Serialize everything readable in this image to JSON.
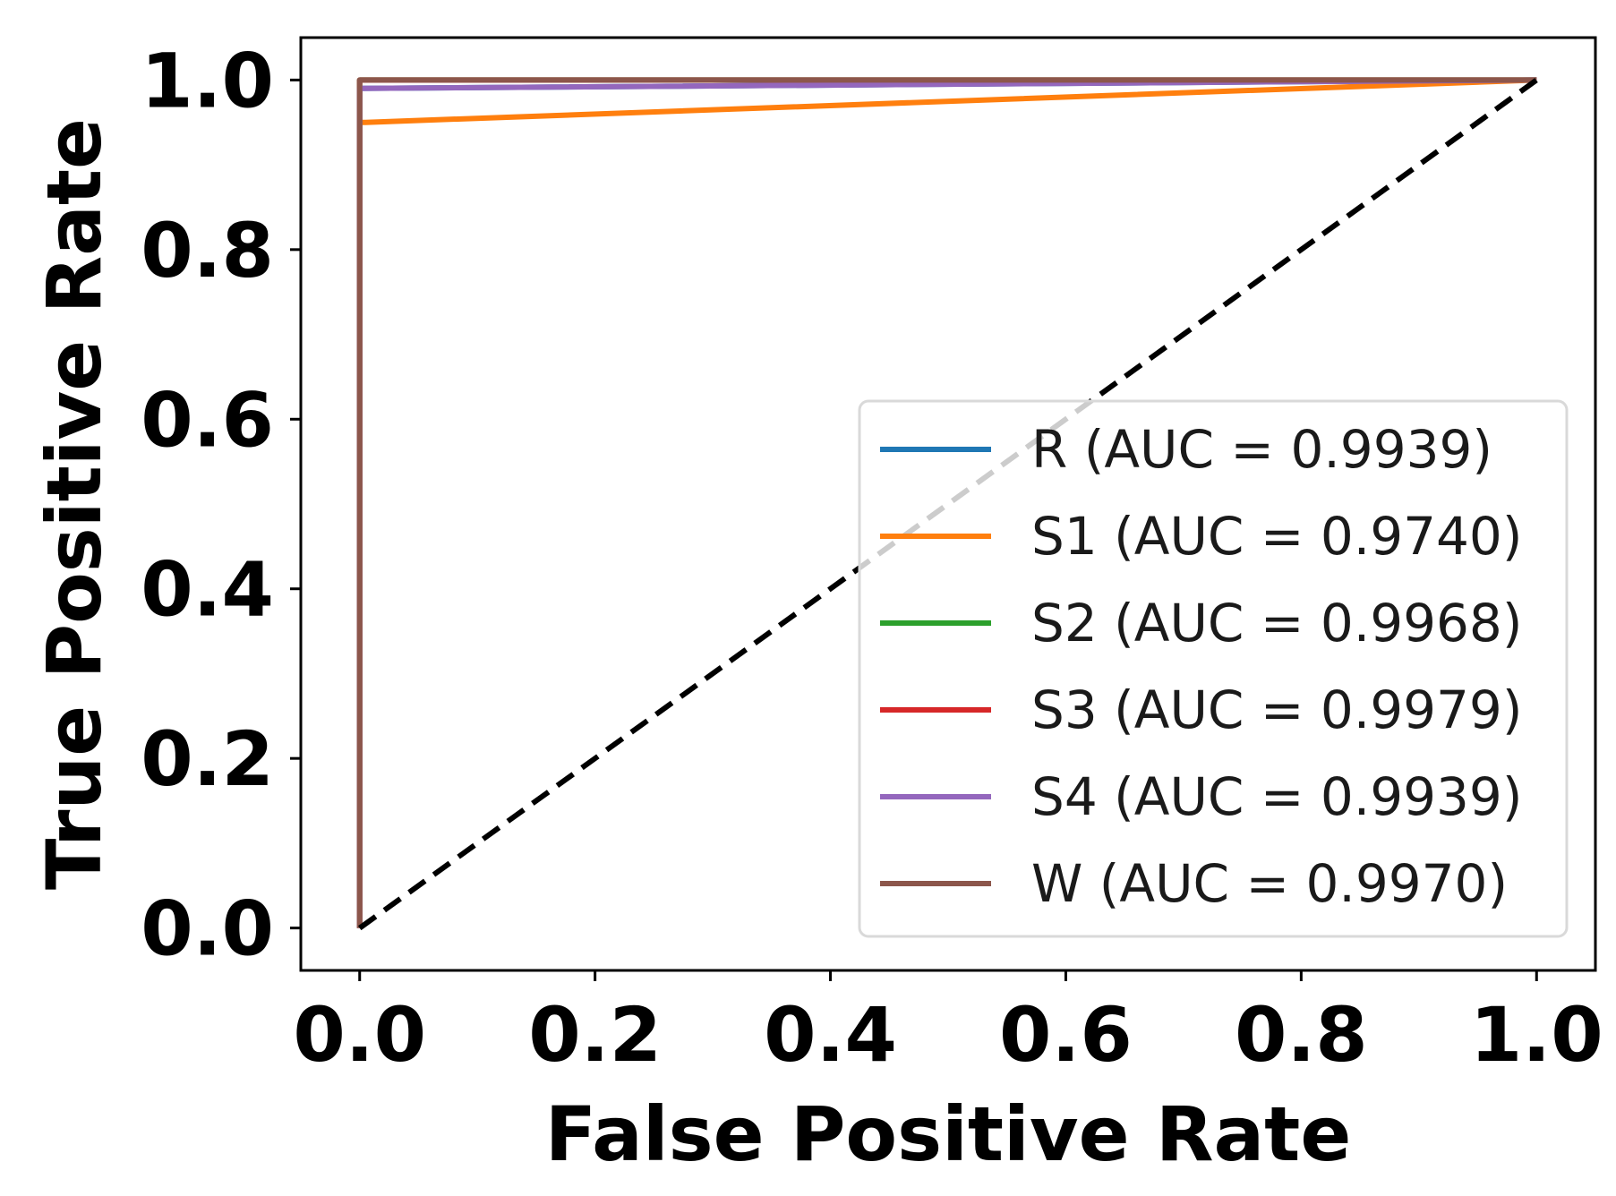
{
  "chart_data": {
    "type": "line",
    "title": "",
    "xlabel": "False Positive Rate",
    "ylabel": "True Positive Rate",
    "xlim": [
      -0.05,
      1.05
    ],
    "ylim": [
      -0.05,
      1.05
    ],
    "xticks": [
      0.0,
      0.2,
      0.4,
      0.6,
      0.8,
      1.0
    ],
    "yticks": [
      0.0,
      0.2,
      0.4,
      0.6,
      0.8,
      1.0
    ],
    "xtick_labels": [
      "0.0",
      "0.2",
      "0.4",
      "0.6",
      "0.8",
      "1.0"
    ],
    "ytick_labels": [
      "0.0",
      "0.2",
      "0.4",
      "0.6",
      "0.8",
      "1.0"
    ],
    "grid": false,
    "legend_position": "lower-right",
    "reference_line": {
      "x": [
        0,
        1
      ],
      "y": [
        0,
        1
      ],
      "style": "dashed",
      "color": "#000000"
    },
    "series": [
      {
        "name": "R (AUC = 0.9939)",
        "color": "#1f77b4",
        "x": [
          0,
          0.0,
          1.0
        ],
        "y": [
          0,
          0.99,
          1.0
        ]
      },
      {
        "name": "S1 (AUC = 0.9740)",
        "color": "#ff7f0e",
        "x": [
          0,
          0.0,
          0.005,
          1.0
        ],
        "y": [
          0,
          0.95,
          0.95,
          1.0
        ]
      },
      {
        "name": "S2 (AUC = 0.9968)",
        "color": "#2ca02c",
        "x": [
          0,
          0.0,
          1.0
        ],
        "y": [
          0,
          1.0,
          1.0
        ]
      },
      {
        "name": "S3 (AUC = 0.9979)",
        "color": "#d62728",
        "x": [
          0,
          0.0,
          1.0
        ],
        "y": [
          0,
          1.0,
          1.0
        ]
      },
      {
        "name": "S4 (AUC = 0.9939)",
        "color": "#9467bd",
        "x": [
          0,
          0.0,
          1.0
        ],
        "y": [
          0,
          0.99,
          1.0
        ]
      },
      {
        "name": "W (AUC = 0.9970)",
        "color": "#8c564b",
        "x": [
          0,
          0.0,
          1.0
        ],
        "y": [
          0,
          1.0,
          1.0
        ]
      }
    ]
  }
}
